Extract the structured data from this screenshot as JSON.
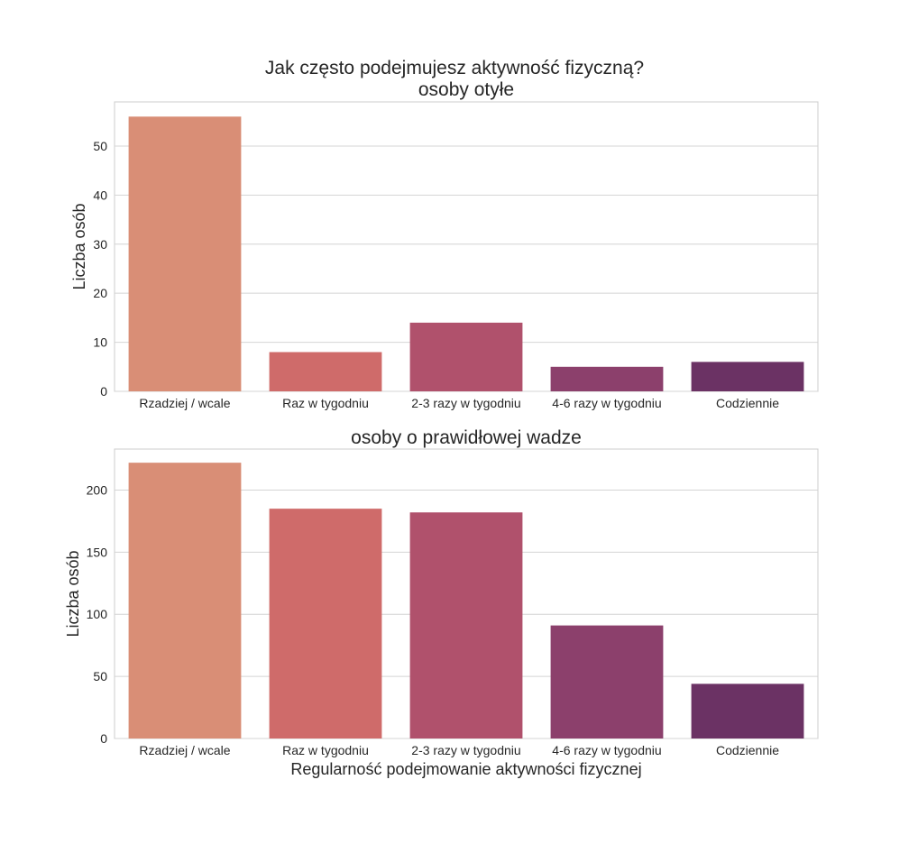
{
  "figure": {
    "title_line1": "Jak często podejmujesz aktywność fizyczną?"
  },
  "chart_data": [
    {
      "type": "bar",
      "title": "osoby otyłe",
      "xlabel": "",
      "ylabel": "Liczba osób",
      "categories": [
        "Rzadziej / wcale",
        "Raz w tygodniu",
        "2-3 razy w tygodniu",
        "4-6 razy w tygodniu",
        "Codziennie"
      ],
      "values": [
        56,
        8,
        14,
        5,
        6
      ],
      "ylim": [
        0,
        59
      ],
      "yticks": [
        0,
        10,
        20,
        30,
        40,
        50
      ],
      "grid": true,
      "colors": [
        "#d98e76",
        "#cf6b6a",
        "#b0516c",
        "#8c406c",
        "#6b3264"
      ]
    },
    {
      "type": "bar",
      "title": "osoby o prawidłowej wadze",
      "xlabel": "Regularność podejmowanie aktywności fizycznej",
      "ylabel": "Liczba osób",
      "categories": [
        "Rzadziej / wcale",
        "Raz w tygodniu",
        "2-3 razy w tygodniu",
        "4-6 razy w tygodniu",
        "Codziennie"
      ],
      "values": [
        222,
        185,
        182,
        91,
        44
      ],
      "ylim": [
        0,
        233
      ],
      "yticks": [
        0,
        50,
        100,
        150,
        200
      ],
      "grid": true,
      "colors": [
        "#d98e76",
        "#cf6b6a",
        "#b0516c",
        "#8c406c",
        "#6b3264"
      ]
    }
  ]
}
